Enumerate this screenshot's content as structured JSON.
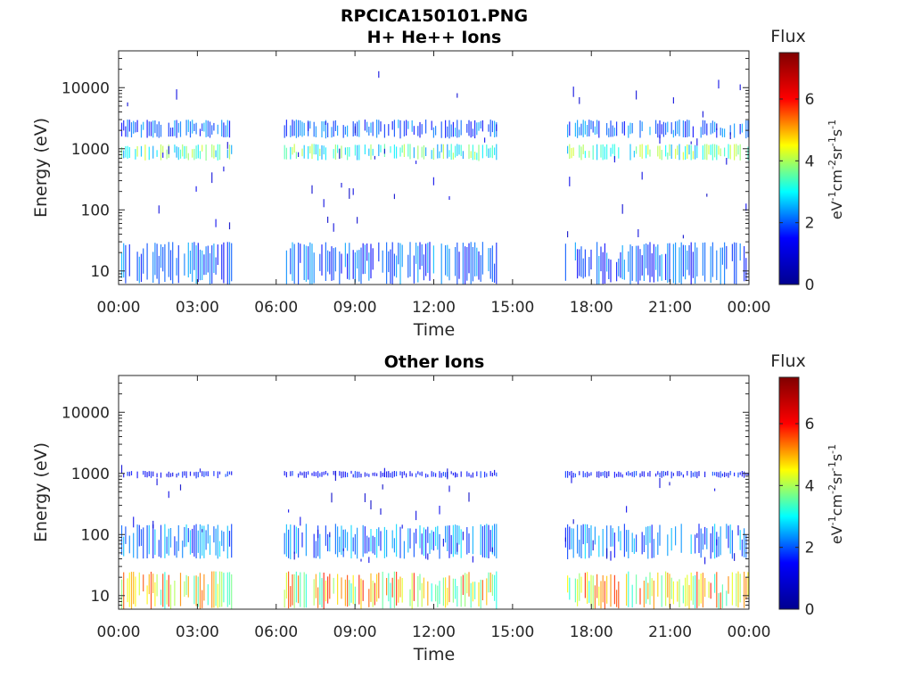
{
  "figure": {
    "filename_title": "RPCICA150101.PNG"
  },
  "colorbar": {
    "title": "Flux",
    "ticks": [
      "0",
      "2",
      "4",
      "6"
    ],
    "tick_values": [
      0,
      2,
      4,
      6
    ],
    "range": [
      0,
      7.5
    ],
    "colormap": "jet",
    "colormap_stops": [
      "#00008f",
      "#0000ff",
      "#00ffff",
      "#ffff00",
      "#ff0000",
      "#800000"
    ]
  },
  "x_axis": {
    "label": "Time",
    "ticks": [
      "00:00",
      "03:00",
      "06:00",
      "09:00",
      "12:00",
      "15:00",
      "18:00",
      "21:00",
      "00:00"
    ],
    "tick_hours": [
      0,
      3,
      6,
      9,
      12,
      15,
      18,
      21,
      24
    ]
  },
  "y_axis": {
    "label": "Energy (eV)",
    "ticks": [
      "10",
      "100",
      "1000",
      "10000"
    ],
    "tick_values": [
      10,
      100,
      1000,
      10000
    ],
    "scale": "log"
  },
  "panels": [
    {
      "title": "H+ He++ Ions"
    },
    {
      "title": "Other Ions"
    }
  ],
  "chart_data": [
    {
      "type": "heatmap",
      "title": "H+ He++ Ions",
      "xlabel": "Time",
      "ylabel": "Energy (eV)",
      "colorbar_label": "Flux",
      "x_unit": "hours",
      "xlim": [
        0,
        24
      ],
      "ylim": [
        6,
        40000
      ],
      "y_scale": "log",
      "clim": [
        0,
        7.5
      ],
      "grid": false,
      "data_intervals_hours": [
        [
          0.1,
          4.3
        ],
        [
          6.3,
          14.4
        ],
        [
          17.0,
          24.0
        ]
      ],
      "bands": [
        {
          "energy_eV": [
            6,
            30
          ],
          "flux": 2.0
        },
        {
          "energy_eV": [
            650,
            1200
          ],
          "flux": 3.3
        },
        {
          "energy_eV": [
            1500,
            3000
          ],
          "flux": 2.0
        },
        {
          "energy_eV": [
            30,
            20000
          ],
          "flux": 1.0
        }
      ]
    },
    {
      "type": "heatmap",
      "title": "Other Ions",
      "xlabel": "Time",
      "ylabel": "Energy (eV)",
      "colorbar_label": "Flux",
      "x_unit": "hours",
      "xlim": [
        0,
        24
      ],
      "ylim": [
        6,
        40000
      ],
      "y_scale": "log",
      "clim": [
        0,
        7.5
      ],
      "grid": false,
      "data_intervals_hours": [
        [
          0.1,
          4.3
        ],
        [
          6.3,
          14.4
        ],
        [
          17.0,
          24.0
        ]
      ],
      "bands": [
        {
          "energy_eV": [
            6,
            25
          ],
          "flux": 4.5
        },
        {
          "energy_eV": [
            40,
            150
          ],
          "flux": 2.2
        },
        {
          "energy_eV": [
            850,
            1100
          ],
          "flux": 1.5
        },
        {
          "energy_eV": [
            30,
            1500
          ],
          "flux": 1.0
        }
      ]
    }
  ]
}
